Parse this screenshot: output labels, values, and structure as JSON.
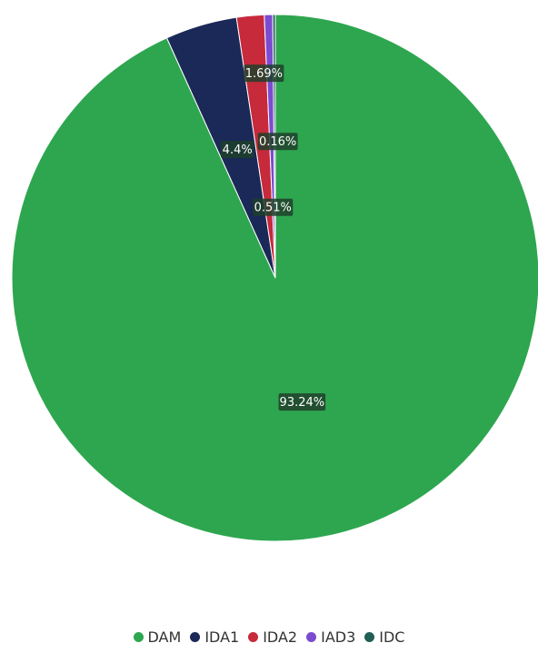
{
  "chart_data": {
    "type": "pie",
    "slices": [
      {
        "name": "DAM",
        "value": 93.24,
        "label": "93.24%",
        "color": "#2ea64f"
      },
      {
        "name": "IDA1",
        "value": 4.4,
        "label": "4.4%",
        "color": "#1a2957"
      },
      {
        "name": "IDA2",
        "value": 1.69,
        "label": "1.69%",
        "color": "#c62a3b"
      },
      {
        "name": "IAD3",
        "value": 0.51,
        "label": "0.51%",
        "color": "#7b4bd0"
      },
      {
        "name": "IDC",
        "value": 0.16,
        "label": "0.16%",
        "color": "#1f5f55"
      }
    ],
    "legend": {
      "placement": "bottom-center",
      "entries": [
        "DAM",
        "IDA1",
        "IDA2",
        "IAD3",
        "IDC"
      ]
    }
  }
}
